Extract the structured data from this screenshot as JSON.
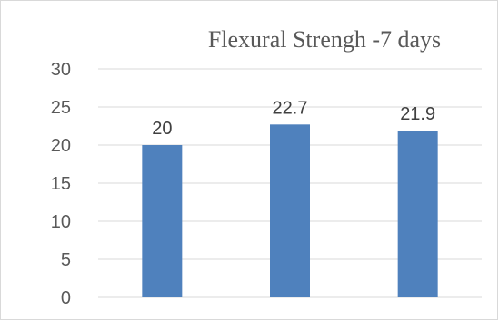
{
  "chart_data": {
    "type": "bar",
    "title": "Flexural Strengh -7 days",
    "categories": [
      "",
      "",
      ""
    ],
    "values": [
      20,
      22.7,
      21.9
    ],
    "data_labels": [
      "20",
      "22.7",
      "21.9"
    ],
    "ylim": [
      0,
      30
    ],
    "yticks": [
      "0",
      "5",
      "10",
      "15",
      "20",
      "25",
      "30"
    ],
    "grid": true,
    "legend": "none",
    "bar_color": "#4f81bd",
    "grid_color": "#d9d9d9"
  }
}
